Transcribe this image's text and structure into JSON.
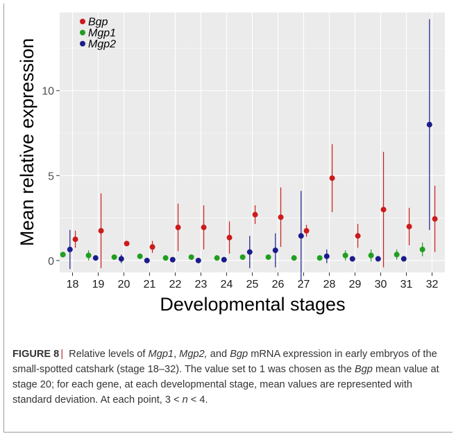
{
  "chart_data": {
    "type": "scatter",
    "xlabel": "Developmental stages",
    "ylabel": "Mean relative expression",
    "categories": [
      "18",
      "19",
      "20",
      "21",
      "22",
      "23",
      "24",
      "25",
      "26",
      "27",
      "28",
      "29",
      "30",
      "31",
      "32"
    ],
    "yticks": [
      0,
      5,
      10
    ],
    "ylim": [
      -0.7,
      14.6
    ],
    "grid": true,
    "legend_position": "top-left",
    "series": [
      {
        "name": "Bgp",
        "color": "#cc1b1b",
        "mean": [
          1.25,
          1.75,
          1.0,
          0.8,
          1.95,
          1.95,
          1.35,
          2.7,
          2.55,
          1.75,
          4.85,
          1.45,
          3.0,
          2.0,
          2.45
        ],
        "sd": [
          0.5,
          2.2,
          0.0,
          0.35,
          1.4,
          1.3,
          0.95,
          0.55,
          1.75,
          0.35,
          2.0,
          0.7,
          3.4,
          1.1,
          1.95
        ]
      },
      {
        "name": "Mgp1",
        "color": "#1f9e1f",
        "mean": [
          0.35,
          0.3,
          0.2,
          0.25,
          0.15,
          0.2,
          0.15,
          0.2,
          0.2,
          0.15,
          0.15,
          0.3,
          0.3,
          0.35,
          0.65
        ],
        "sd": [
          0.15,
          0.3,
          0.05,
          0.1,
          0.05,
          0.05,
          0.05,
          0.05,
          0.05,
          0.05,
          0.05,
          0.3,
          0.35,
          0.3,
          0.4
        ]
      },
      {
        "name": "Mgp2",
        "color": "#1b1b8c",
        "mean": [
          0.65,
          0.15,
          0.1,
          0.0,
          0.05,
          0.0,
          0.05,
          0.5,
          0.6,
          1.45,
          0.25,
          0.1,
          0.1,
          0.1,
          8.0
        ],
        "sd": [
          1.15,
          0.05,
          0.25,
          0.05,
          0.05,
          0.05,
          0.05,
          0.95,
          1.0,
          2.65,
          0.4,
          0.05,
          0.05,
          0.05,
          6.2
        ]
      }
    ]
  },
  "caption": {
    "label": "FIGURE 8",
    "separator": "|",
    "t1": " Relative levels of ",
    "g1": "Mgp1",
    "t2": ", ",
    "g2": "Mgp2,",
    "t3": " and ",
    "g3": "Bgp",
    "t4": " mRNA expression in early embryos of the small-spotted catshark (stage 18–32). The value set to 1 was chosen as the ",
    "g4": "Bgp",
    "t5": " mean value at stage 20; for each gene, at each developmental stage, mean values are represented with standard deviation. At each point, 3 < ",
    "n": "n",
    "t6": " < 4."
  }
}
